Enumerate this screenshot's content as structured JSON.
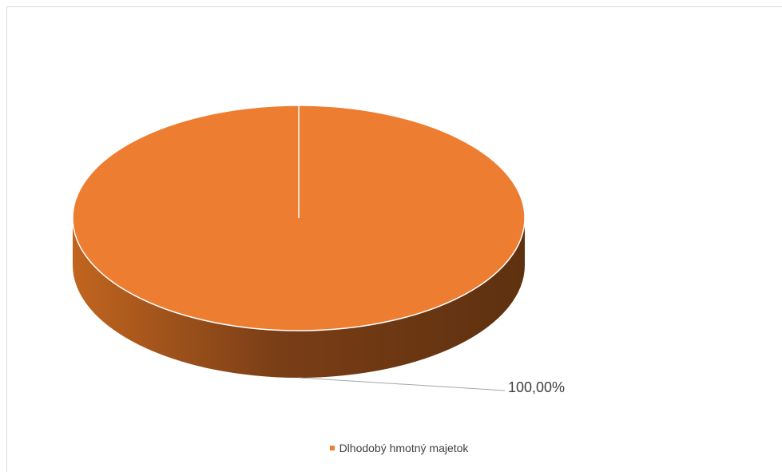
{
  "chart_data": {
    "type": "pie",
    "style": "3d",
    "categories": [
      "Dlhodobý hmotný majetok"
    ],
    "values": [
      100
    ],
    "data_labels": [
      "100,00%"
    ],
    "colors": [
      "#ED7D31"
    ],
    "side_dark_color": "#5E3110",
    "legend_position": "bottom",
    "grid": false
  }
}
